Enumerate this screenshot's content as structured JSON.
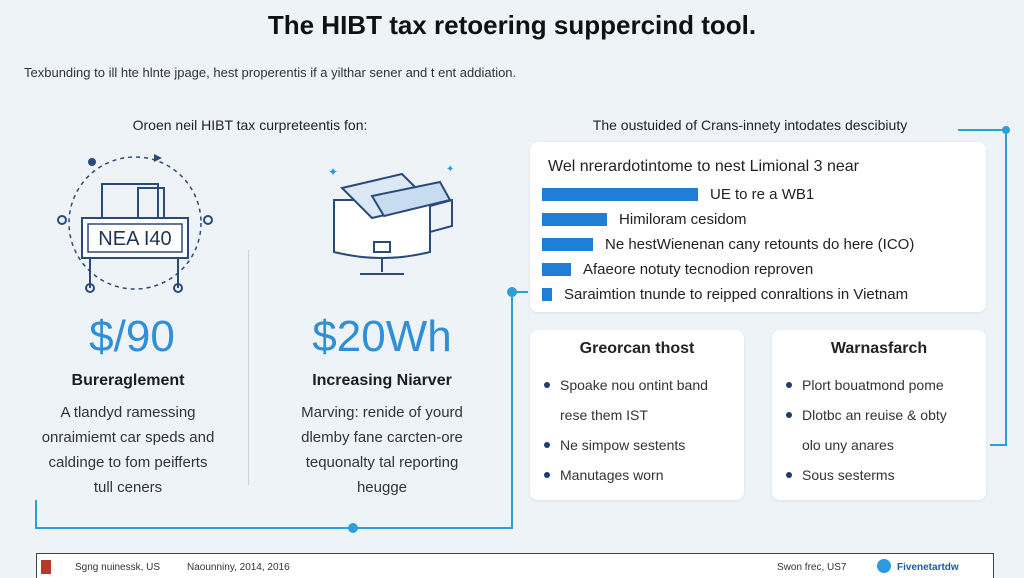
{
  "title": "The HIBT tax retoering suppercind tool.",
  "subtitle": "Texbunding to ill hte hlnte jpage, hest properentis if a yilthar sener and t ent addiation.",
  "left_section": {
    "heading": "Oroen neil HIBT tax curpreteentis fon:",
    "cards": [
      {
        "icon": "license-plate-icon",
        "icon_text": "NEA I40",
        "stat": "$/90",
        "title": "Bureraglement",
        "desc": [
          "A tlandyd ramessing",
          "onraimiemt car speds and",
          "caldinge to fom peifferts",
          "tull ceners"
        ]
      },
      {
        "icon": "document-tray-icon",
        "stat": "$20Wh",
        "title": "Increasing Niarver",
        "desc": [
          "Marving: renide of yourd",
          "dlemby fane carcten-ore",
          "tequonalty tal reporting",
          "heugge"
        ]
      }
    ]
  },
  "right_section": {
    "heading": "The oustuided of Crans-innety intodates descibiuty",
    "bars_panel": {
      "title": "Wel nrerardotintome to nest Limional 3 near",
      "items": [
        {
          "label": "UE to re a WB1",
          "value": 0.82
        },
        {
          "label": "Himiloram cesidom",
          "value": 0.34
        },
        {
          "label": "Ne hestWienenan cany retounts do here (ICO)",
          "value": 0.27
        },
        {
          "label": "Afaeore notuty tecnodion reproven",
          "value": 0.15
        },
        {
          "label": "Saraimtion tnunde to reipped conraltions in Vietnam",
          "value": 0.05
        }
      ]
    },
    "boxes": [
      {
        "title": "Greorcan thost",
        "items": [
          [
            "Spoake nou ontint band",
            "rese them IST"
          ],
          [
            "Ne simpow sestents"
          ],
          [
            "Manutages worn"
          ]
        ]
      },
      {
        "title": "Warnasfarch",
        "items": [
          [
            "Plort bouatmond pome"
          ],
          [
            "Dlotbc an reuise & obty",
            "olo uny anares"
          ],
          [
            "Sous sesterms"
          ]
        ]
      }
    ]
  },
  "footer": {
    "left": "Sgng nuinessk, US",
    "date": "Naounniny, 2014, 2016",
    "right": "Swon frec, US7",
    "handle": "Fivenetartdw"
  },
  "colors": {
    "accent": "#1f7fd6",
    "stat": "#2f8fd8",
    "line": "#2c9fd6",
    "icon": "#2a4a7a"
  }
}
